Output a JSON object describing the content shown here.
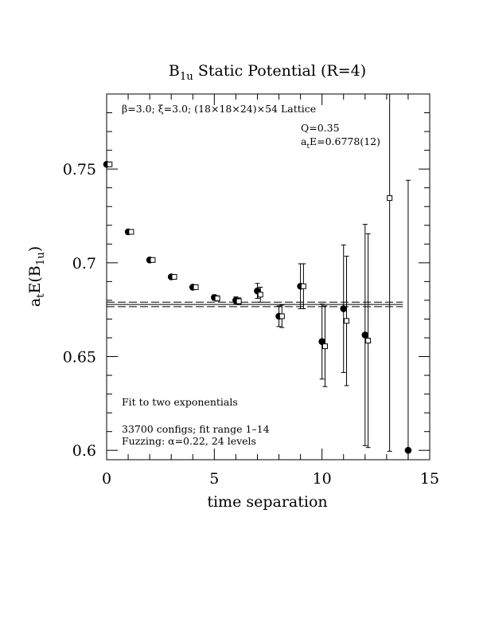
{
  "chart_data": {
    "type": "scatter",
    "title": {
      "main": "B",
      "sub": "1u",
      "rest": " Static Potential (R=4)"
    },
    "xlabel": "time separation",
    "ylabel": {
      "pre": "a",
      "pre_sub": "t",
      "mid": "E(B",
      "mid_sub": "1u",
      "post": ")"
    },
    "xlim": [
      0,
      15
    ],
    "ylim": [
      0.595,
      0.79
    ],
    "xticks": [
      0,
      5,
      10,
      15
    ],
    "xtick_labels": [
      "0",
      "5",
      "10",
      "15"
    ],
    "yticks": [
      0.6,
      0.65,
      0.7,
      0.75
    ],
    "ytick_labels": [
      "0.6",
      "0.65",
      "0.7",
      "0.75"
    ],
    "grid": false,
    "annotations": {
      "lattice": "β=3.0; ξ=3.0; (18×18×24)×54 Lattice",
      "q": "Q=0.35",
      "fit_pre": "a",
      "fit_sub": "t",
      "fit_post": "E=0.6778(12)",
      "fit_type": "Fit to two exponentials",
      "configs": "33700 configs; fit range 1–14",
      "fuzzing": "Fuzzing: α=0.22, 24 levels"
    },
    "fit": {
      "value": 0.6778,
      "error": 0.0012,
      "x_range": [
        1,
        14
      ]
    },
    "series": [
      {
        "marker": "filled-circle",
        "points": [
          {
            "x": 0,
            "y": 0.7525,
            "err": 0.0004
          },
          {
            "x": 1,
            "y": 0.7165,
            "err": 0.0006
          },
          {
            "x": 2,
            "y": 0.7015,
            "err": 0.0007
          },
          {
            "x": 3,
            "y": 0.6925,
            "err": 0.0009
          },
          {
            "x": 4,
            "y": 0.687,
            "err": 0.001
          },
          {
            "x": 5,
            "y": 0.6815,
            "err": 0.0014
          },
          {
            "x": 6,
            "y": 0.68,
            "err": 0.0018
          },
          {
            "x": 7,
            "y": 0.685,
            "err": 0.004
          },
          {
            "x": 8,
            "y": 0.6715,
            "err": 0.0055
          },
          {
            "x": 9,
            "y": 0.6875,
            "err": 0.012
          },
          {
            "x": 10,
            "y": 0.658,
            "err": 0.02
          },
          {
            "x": 11,
            "y": 0.6755,
            "err": 0.034
          },
          {
            "x": 12,
            "y": 0.6615,
            "err": 0.059
          },
          {
            "x": 14,
            "y": 0.6,
            "err": 0.144
          }
        ]
      },
      {
        "marker": "open-square",
        "points": [
          {
            "x": 0,
            "y": 0.7525,
            "err": 0.0004
          },
          {
            "x": 1,
            "y": 0.7165,
            "err": 0.0006
          },
          {
            "x": 2,
            "y": 0.7015,
            "err": 0.0007
          },
          {
            "x": 3,
            "y": 0.6925,
            "err": 0.0009
          },
          {
            "x": 4,
            "y": 0.687,
            "err": 0.001
          },
          {
            "x": 5,
            "y": 0.681,
            "err": 0.0014
          },
          {
            "x": 6,
            "y": 0.6795,
            "err": 0.0018
          },
          {
            "x": 7,
            "y": 0.683,
            "err": 0.004
          },
          {
            "x": 8,
            "y": 0.6715,
            "err": 0.006
          },
          {
            "x": 9,
            "y": 0.6875,
            "err": 0.012
          },
          {
            "x": 10,
            "y": 0.6555,
            "err": 0.0215
          },
          {
            "x": 11,
            "y": 0.669,
            "err": 0.0345
          },
          {
            "x": 12,
            "y": 0.6585,
            "err": 0.057
          },
          {
            "x": 13,
            "y": 0.7345,
            "err": 0.135
          }
        ]
      }
    ]
  }
}
